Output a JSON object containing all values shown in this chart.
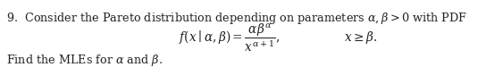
{
  "background_color": "#ffffff",
  "figsize": [
    5.63,
    0.94
  ],
  "dpi": 100,
  "line1_prefix": "9.  Consider the Pareto distribution depending on parameters ",
  "line1_math": "$\\alpha, \\beta > 0$",
  "line1_suffix": " with PDF",
  "formula": "$f(x \\mid \\alpha, \\beta) = \\dfrac{\\alpha\\beta^{\\alpha}}{x^{\\alpha+1}},$",
  "formula_condition": "$x \\geq \\beta.$",
  "line3": "Find the MLEs for $\\alpha$ and $\\beta$.",
  "text_color": "#231f20",
  "font_size_main": 9.2,
  "font_size_formula": 9.8,
  "font_size_line3": 9.2
}
